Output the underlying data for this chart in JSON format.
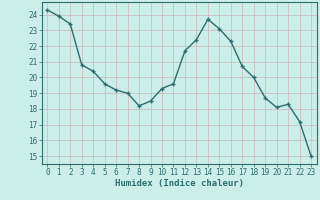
{
  "x": [
    0,
    1,
    2,
    3,
    4,
    5,
    6,
    7,
    8,
    9,
    10,
    11,
    12,
    13,
    14,
    15,
    16,
    17,
    18,
    19,
    20,
    21,
    22,
    23
  ],
  "y": [
    24.3,
    23.9,
    23.4,
    20.8,
    20.4,
    19.6,
    19.2,
    19.0,
    18.2,
    18.5,
    19.3,
    19.6,
    21.7,
    22.4,
    23.7,
    23.1,
    22.3,
    20.7,
    20.0,
    18.7,
    18.1,
    18.3,
    17.2,
    15.0
  ],
  "line_color": "#2d6e6e",
  "marker": "P",
  "marker_size": 3,
  "bg_color": "#cceee8",
  "grid_color": "#c4c4c4",
  "xlabel": "Humidex (Indice chaleur)",
  "ylim_min": 14.5,
  "ylim_max": 24.8,
  "xlim_min": -0.5,
  "xlim_max": 23.5,
  "yticks": [
    15,
    16,
    17,
    18,
    19,
    20,
    21,
    22,
    23,
    24
  ],
  "xticks": [
    0,
    1,
    2,
    3,
    4,
    5,
    6,
    7,
    8,
    9,
    10,
    11,
    12,
    13,
    14,
    15,
    16,
    17,
    18,
    19,
    20,
    21,
    22,
    23
  ],
  "tick_fontsize": 5.5,
  "label_fontsize": 6.5,
  "line_width": 1.0
}
